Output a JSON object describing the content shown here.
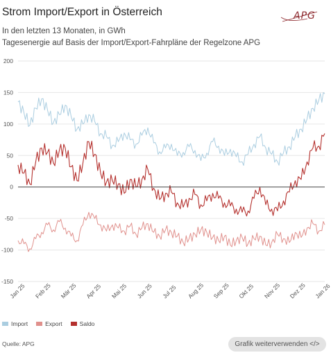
{
  "header": {
    "title": "Strom Import/Export in Österreich",
    "subtitle_1": "In den letzten 13 Monaten, in GWh",
    "subtitle_2": "Tagesenergie auf Basis der Import/Export-Fahrpläne der Regelzone APG",
    "logo_text": "APG"
  },
  "footer": {
    "source": "Quelle: APG",
    "reuse_button": "Grafik weiterverwenden </>"
  },
  "colors": {
    "import": "#aacde0",
    "export": "#e0908c",
    "saldo": "#b4302d",
    "grid": "#e6e6e6",
    "zero_line": "#444444"
  },
  "chart_data": {
    "type": "line",
    "title": "",
    "xlabel": "",
    "ylabel": "",
    "ylim": [
      -150,
      200
    ],
    "yticks": [
      -150,
      -100,
      -50,
      0,
      50,
      100,
      150,
      200
    ],
    "x_tick_labels": [
      "Jan 25",
      "Feb 25",
      "Mär 25",
      "Apr 25",
      "Mai 25",
      "Jun 25",
      "Jul 25",
      "Aug 25",
      "Sep 25",
      "Okt 25",
      "Nov 25",
      "Dez 25",
      "Jan 26"
    ],
    "grid": "horizontal",
    "legend_position": "bottom-left",
    "series": [
      {
        "name": "Import",
        "key": "import",
        "values": [
          135,
          118,
          98,
          125,
          140,
          122,
          102,
          115,
          130,
          112,
          92,
          100,
          115,
          104,
          85,
          80,
          66,
          72,
          86,
          75,
          68,
          82,
          94,
          70,
          56,
          62,
          68,
          50,
          55,
          64,
          58,
          42,
          54,
          72,
          65,
          50,
          60,
          48,
          40,
          52,
          68,
          80,
          62,
          52,
          40,
          54,
          64,
          80,
          92,
          108,
          125,
          138,
          148
        ]
      },
      {
        "name": "Export",
        "key": "export",
        "values": [
          -85,
          -90,
          -98,
          -82,
          -72,
          -60,
          -68,
          -55,
          -65,
          -78,
          -85,
          -60,
          -40,
          -50,
          -60,
          -70,
          -60,
          -65,
          -70,
          -62,
          -75,
          -65,
          -58,
          -72,
          -78,
          -68,
          -72,
          -78,
          -88,
          -82,
          -75,
          -68,
          -72,
          -80,
          -85,
          -78,
          -92,
          -85,
          -80,
          -90,
          -82,
          -78,
          -92,
          -88,
          -75,
          -82,
          -88,
          -72,
          -80,
          -65,
          -58,
          -70,
          -60
        ]
      },
      {
        "name": "Saldo",
        "key": "saldo",
        "values": [
          35,
          22,
          5,
          40,
          62,
          55,
          38,
          58,
          62,
          32,
          10,
          38,
          72,
          52,
          22,
          8,
          10,
          5,
          -10,
          12,
          0,
          12,
          28,
          -2,
          -20,
          -10,
          -8,
          -25,
          -32,
          -18,
          -12,
          -28,
          -22,
          -10,
          -18,
          -25,
          -30,
          -35,
          -40,
          -38,
          -18,
          0,
          -28,
          -35,
          -38,
          -22,
          -8,
          10,
          12,
          40,
          62,
          65,
          85
        ]
      }
    ]
  }
}
